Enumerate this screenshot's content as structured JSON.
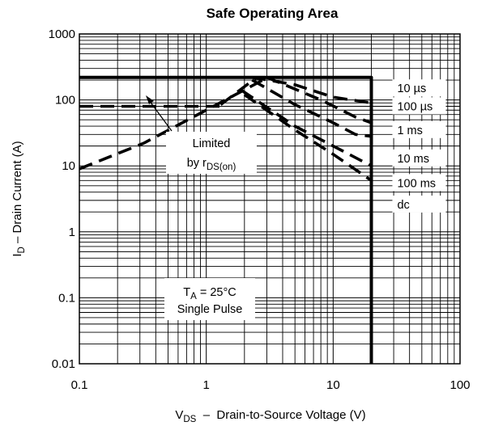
{
  "chart_data": {
    "type": "line",
    "title": "Safe Operating Area",
    "x_scale": "log",
    "y_scale": "log",
    "xlim": [
      0.1,
      100
    ],
    "ylim": [
      0.01,
      1000
    ],
    "grid": true,
    "x_ticks": [
      "0.1",
      "1",
      "10",
      "100"
    ],
    "y_ticks": [
      "1000",
      "100",
      "10",
      "1",
      "0.1",
      "0.01"
    ],
    "xlabel": {
      "main": "V",
      "sub": "DS",
      "rest": "  –  Drain-to-Source Voltage (V)"
    },
    "ylabel": {
      "main": "I",
      "sub": "D",
      "rest": " – Drain Current (A)"
    },
    "series": [
      {
        "name": "10 µs",
        "style": "dashed",
        "points": [
          [
            2.3,
            220
          ],
          [
            5.0,
            170
          ],
          [
            10,
            110
          ],
          [
            20,
            90
          ]
        ]
      },
      {
        "name": "100 µs",
        "style": "dashed",
        "points": [
          [
            3.0,
            220
          ],
          [
            8.0,
            100
          ],
          [
            15,
            55
          ],
          [
            20,
            45
          ]
        ]
      },
      {
        "name": "1 ms",
        "style": "dashed",
        "points": [
          [
            2.3,
            200
          ],
          [
            5.0,
            85
          ],
          [
            10,
            45
          ],
          [
            15,
            30
          ],
          [
            20,
            28
          ]
        ]
      },
      {
        "name": "10 ms",
        "style": "dashed",
        "points": [
          [
            1.9,
            140
          ],
          [
            5.0,
            40
          ],
          [
            10,
            20
          ],
          [
            20,
            10
          ]
        ]
      },
      {
        "name": "100 ms",
        "style": "dashed",
        "points": [
          [
            2.0,
            120
          ],
          [
            5.0,
            35
          ],
          [
            10,
            15
          ],
          [
            20,
            6
          ]
        ]
      },
      {
        "name": "dc",
        "style": "solid",
        "points": [
          [
            0.1,
            220
          ],
          [
            20,
            220
          ],
          [
            20,
            0.01
          ]
        ]
      },
      {
        "name": "",
        "style": "dashed",
        "points": [
          [
            0.1,
            80
          ],
          [
            1.3,
            80
          ]
        ]
      },
      {
        "name": "",
        "style": "dashed",
        "points": [
          [
            0.1,
            9
          ],
          [
            0.32,
            22
          ],
          [
            1.0,
            70
          ],
          [
            3.0,
            215
          ]
        ]
      },
      {
        "name": "",
        "style": "dashed",
        "points": [
          [
            1.3,
            85
          ],
          [
            2.5,
            220
          ]
        ]
      }
    ],
    "legend_labels": [
      {
        "text": "10 µs",
        "x": 32,
        "y": 150
      },
      {
        "text": "100 µs",
        "x": 32,
        "y": 80
      },
      {
        "text": "1 ms",
        "x": 32,
        "y": 35
      },
      {
        "text": "10 ms",
        "x": 32,
        "y": 13
      },
      {
        "text": "100 ms",
        "x": 32,
        "y": 5.5
      },
      {
        "text": "dc",
        "x": 32,
        "y": 2.6
      }
    ],
    "annotations": {
      "limited": {
        "line1": "Limited",
        "line2_main": "by r",
        "line2_sub": "DS(on)"
      },
      "conditions": {
        "line1_main": "T",
        "line1_sub": "A",
        "line1_rest": " = 25°C",
        "line2": "Single Pulse"
      }
    }
  }
}
